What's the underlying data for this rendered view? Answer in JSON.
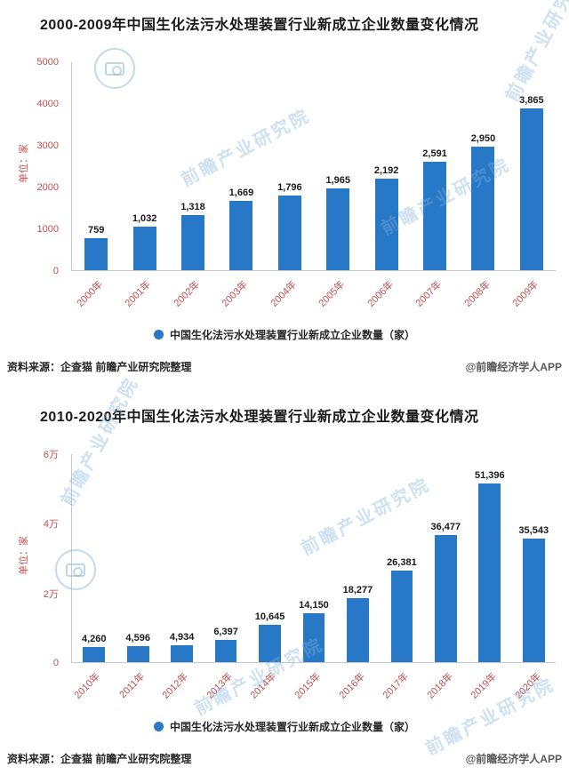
{
  "watermark": {
    "text": "前瞻产业研究院"
  },
  "chart_data": [
    {
      "type": "bar",
      "title": "2000-2009年中国生化法污水处理装置行业新成立企业数量变化情况",
      "ylabel": "单位：家",
      "xlabel": "",
      "ylim": [
        0,
        5000
      ],
      "grid": false,
      "legend_position": "bottom",
      "yticks": [
        {
          "value": 0,
          "label": "0"
        },
        {
          "value": 1000,
          "label": "1000"
        },
        {
          "value": 2000,
          "label": "2000"
        },
        {
          "value": 3000,
          "label": "3000"
        },
        {
          "value": 4000,
          "label": "4000"
        },
        {
          "value": 5000,
          "label": "5000"
        }
      ],
      "categories": [
        "2000年",
        "2001年",
        "2002年",
        "2003年",
        "2004年",
        "2005年",
        "2006年",
        "2007年",
        "2008年",
        "2009年"
      ],
      "values": [
        759,
        1032,
        1318,
        1669,
        1796,
        1965,
        2192,
        2591,
        2950,
        3865
      ],
      "value_labels": [
        "759",
        "1,032",
        "1,318",
        "1,669",
        "1,796",
        "1,965",
        "2,192",
        "2,591",
        "2,950",
        "3,865"
      ],
      "legend": "中国生化法污水处理装置行业新成立企业数量（家）",
      "source": "资料来源：企查猫 前瞻产业研究院整理",
      "credit": "@前瞻经济学人APP",
      "bar_color": "#2878C8",
      "axis_color": "#C0504D"
    },
    {
      "type": "bar",
      "title": "2010-2020年中国生化法污水处理装置行业新成立企业数量变化情况",
      "ylabel": "单位：家",
      "xlabel": "",
      "ylim": [
        0,
        60000
      ],
      "grid": false,
      "legend_position": "bottom",
      "yticks": [
        {
          "value": 0,
          "label": "0"
        },
        {
          "value": 20000,
          "label": "2万"
        },
        {
          "value": 40000,
          "label": "4万"
        },
        {
          "value": 60000,
          "label": "6万"
        }
      ],
      "categories": [
        "2010年",
        "2011年",
        "2012年",
        "2013年",
        "2014年",
        "2015年",
        "2016年",
        "2017年",
        "2018年",
        "2019年",
        "2020年"
      ],
      "values": [
        4260,
        4596,
        4934,
        6397,
        10645,
        14150,
        18277,
        26381,
        36477,
        51396,
        35543
      ],
      "value_labels": [
        "4,260",
        "4,596",
        "4,934",
        "6,397",
        "10,645",
        "14,150",
        "18,277",
        "26,381",
        "36,477",
        "51,396",
        "35,543"
      ],
      "legend": "中国生化法污水处理装置行业新成立企业数量（家）",
      "source": "资料来源：企查猫 前瞻产业研究院整理",
      "credit": "@前瞻经济学人APP",
      "bar_color": "#2878C8",
      "axis_color": "#C0504D"
    }
  ]
}
